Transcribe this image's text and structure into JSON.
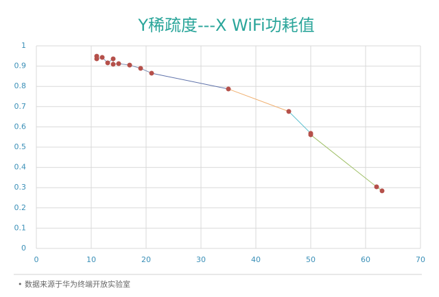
{
  "chart_data": {
    "type": "scatter",
    "title": "Y稀疏度---X WiFi功耗值",
    "x": [
      11,
      11,
      12,
      13,
      14,
      14,
      15,
      17,
      19,
      21,
      35,
      46,
      50,
      50,
      62,
      63
    ],
    "values": [
      0.949,
      0.936,
      0.943,
      0.916,
      0.936,
      0.909,
      0.912,
      0.905,
      0.889,
      0.865,
      0.787,
      0.676,
      0.568,
      0.561,
      0.304,
      0.284
    ],
    "color": "#b5504a",
    "segment_colors": [
      "#8090b4",
      "#8090b4",
      "#8090b4",
      "#8090b4",
      "#8090b4",
      "#8090b4",
      "#8090b4",
      "#8090b4",
      "#8090b4",
      "#5b6fa8",
      "#f0b070",
      "#5bc0d0",
      "#5bc0d0",
      "#a0c068",
      "#a0c068"
    ],
    "xlim": [
      0,
      70
    ],
    "xticks": [
      0,
      10,
      20,
      30,
      40,
      50,
      60,
      70
    ],
    "ylim": [
      0,
      1
    ],
    "yticks": [
      0,
      0.1,
      0.2,
      0.3,
      0.4,
      0.5,
      0.6,
      0.7,
      0.8,
      0.9,
      1
    ],
    "grid": true,
    "note": "• 数据来源于华为终端开放实验室"
  }
}
